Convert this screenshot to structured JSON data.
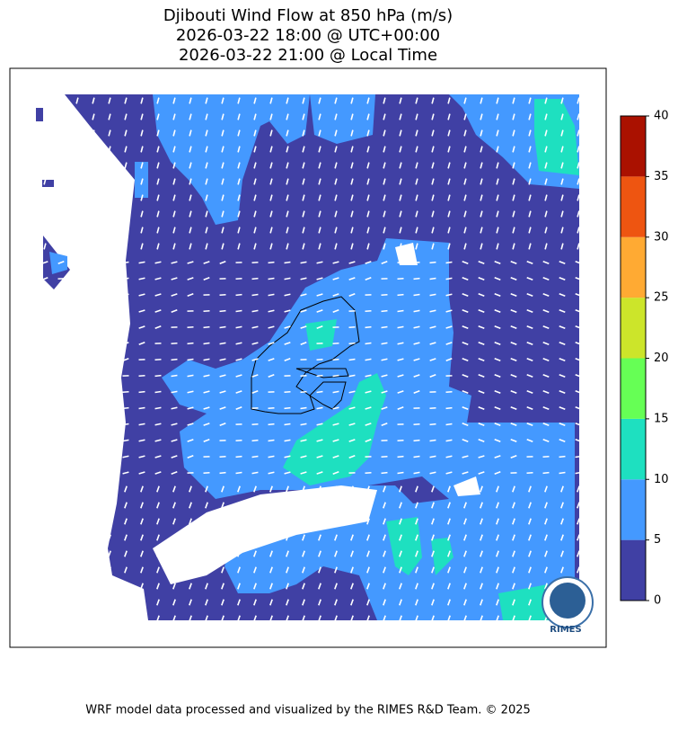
{
  "header": {
    "title_lines": [
      "Djibouti Wind Flow at 850 hPa (m/s)",
      "2026-03-22 18:00 @ UTC+00:00",
      "2026-03-22 21:00 @ Local Time"
    ]
  },
  "colorbar": {
    "lim": [
      0,
      40
    ],
    "ticks": [
      0,
      5,
      10,
      15,
      20,
      25,
      30,
      35,
      40
    ],
    "colors": [
      "#4040a4",
      "#4499ff",
      "#1ee0c0",
      "#66ff55",
      "#cce52a",
      "#ffaa33",
      "#ee5511",
      "#aa1100"
    ]
  },
  "logo": {
    "text": "RIMES"
  },
  "footer": {
    "text": "WRF model data processed and visualized by the RIMES R&D Team. © 2025"
  }
}
